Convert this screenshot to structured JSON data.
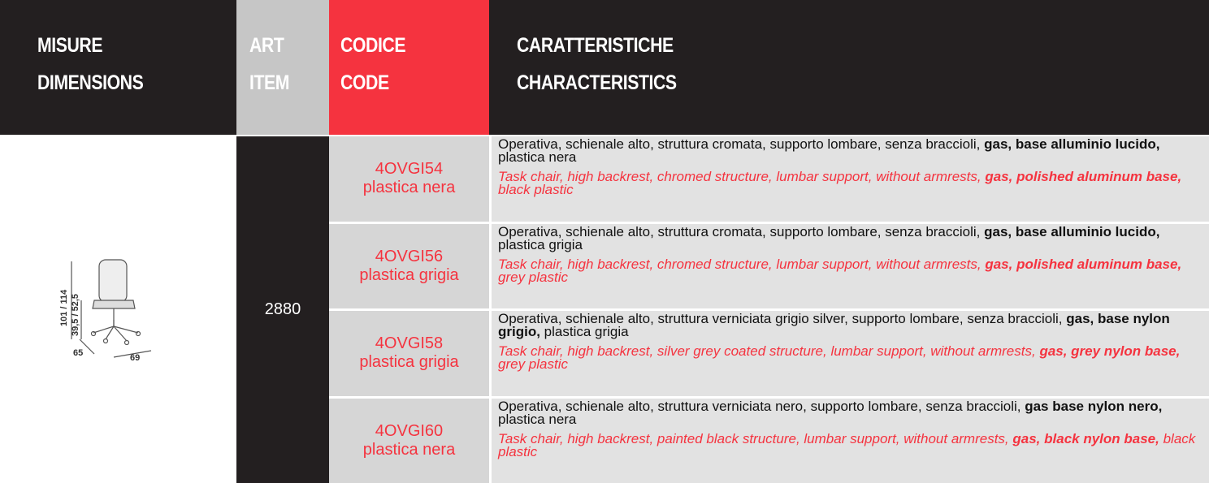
{
  "header": {
    "misure": "MISURE",
    "dimensions": "DIMENSIONS",
    "art": "ART",
    "item": "ITEM",
    "codice": "CODICE",
    "code": "CODE",
    "caratteristiche": "CARATTERISTICHE",
    "characteristics": "CHARACTERISTICS"
  },
  "dimensions_drawing": {
    "height": "101 / 114",
    "seat_height": "39,5 / 52,5",
    "depth": "65",
    "width": "69"
  },
  "item": "2880",
  "rows": [
    {
      "code": "4OVGI54",
      "variant": "plastica nera",
      "it": [
        {
          "text": "Operativa, schienale alto, struttura cromata, supporto lombare, senza braccioli, ",
          "bold": false
        },
        {
          "text": "gas, base alluminio lucido,",
          "bold": true
        },
        {
          "text": " plastica nera",
          "bold": false
        }
      ],
      "en": [
        {
          "text": "Task chair, high backrest, chromed structure, lumbar support, without armrests, ",
          "bold": false
        },
        {
          "text": "gas, polished aluminum base,",
          "bold": true
        },
        {
          "text": " black plastic",
          "bold": false
        }
      ]
    },
    {
      "code": "4OVGI56",
      "variant": "plastica grigia",
      "it": [
        {
          "text": "Operativa, schienale alto, struttura cromata, supporto lombare, senza braccioli, ",
          "bold": false
        },
        {
          "text": "gas, base alluminio lucido,",
          "bold": true
        },
        {
          "text": " plastica grigia",
          "bold": false
        }
      ],
      "en": [
        {
          "text": "Task chair, high backrest, chromed structure, lumbar support, without armrests, ",
          "bold": false
        },
        {
          "text": "gas, polished aluminum base,",
          "bold": true
        },
        {
          "text": " grey plastic",
          "bold": false
        }
      ]
    },
    {
      "code": "4OVGI58",
      "variant": "plastica grigia",
      "it": [
        {
          "text": "Operativa, schienale alto, struttura verniciata grigio silver, supporto lombare, senza braccioli, ",
          "bold": false
        },
        {
          "text": "gas, base nylon grigio,",
          "bold": true
        },
        {
          "text": " plastica grigia",
          "bold": false
        }
      ],
      "en": [
        {
          "text": "Task chair, high backrest, silver grey coated structure, lumbar support, without armrests, ",
          "bold": false
        },
        {
          "text": "gas, grey nylon base,",
          "bold": true
        },
        {
          "text": " grey plastic",
          "bold": false
        }
      ]
    },
    {
      "code": "4OVGI60",
      "variant": "plastica nera",
      "it": [
        {
          "text": "Operativa, schienale alto, struttura verniciata nero, supporto lombare, senza braccioli, ",
          "bold": false
        },
        {
          "text": "gas base nylon nero,",
          "bold": true
        },
        {
          "text": " plastica nera",
          "bold": false
        }
      ],
      "en": [
        {
          "text": "Task chair, high backrest, painted black structure, lumbar support, without armrests, ",
          "bold": false
        },
        {
          "text": "gas, black nylon base,",
          "bold": true
        },
        {
          "text": " black plastic",
          "bold": false
        }
      ]
    }
  ]
}
